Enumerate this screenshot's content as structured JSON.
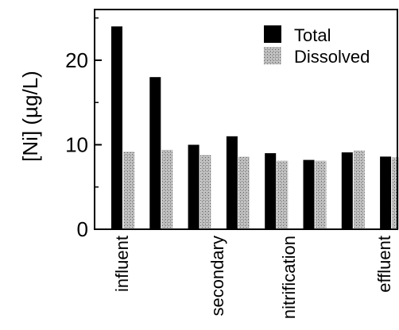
{
  "chart_data": {
    "type": "bar",
    "title": "",
    "xlabel": "",
    "ylabel": "[Ni] (µg/L)",
    "ylim": [
      0,
      26
    ],
    "yticks": [
      0,
      10,
      20
    ],
    "categories": [
      "influent",
      "",
      "secondary",
      "",
      "nitrification",
      "",
      "",
      "effluent"
    ],
    "series": [
      {
        "name": "Total",
        "values": [
          24.0,
          18.0,
          10.0,
          11.0,
          9.0,
          8.2,
          9.1,
          8.6
        ],
        "color": "#000000",
        "pattern": "solid"
      },
      {
        "name": "Dissolved",
        "values": [
          9.2,
          9.4,
          8.8,
          8.6,
          8.1,
          8.1,
          9.3,
          8.5
        ],
        "color": "#9a9a9a",
        "pattern": "stipple"
      }
    ],
    "legend": {
      "position": "top-right"
    },
    "grid": false
  }
}
